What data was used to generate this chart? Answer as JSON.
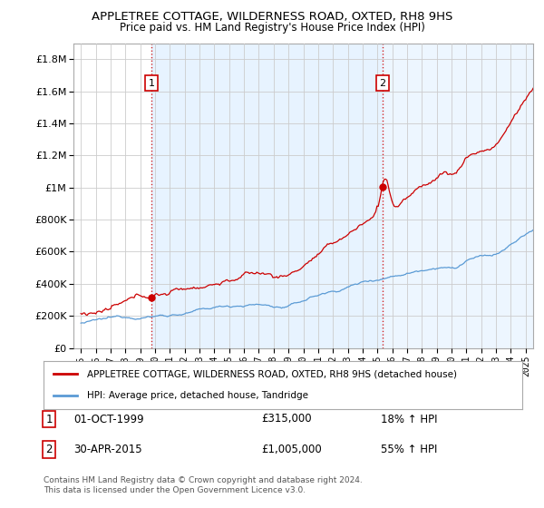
{
  "title": "APPLETREE COTTAGE, WILDERNESS ROAD, OXTED, RH8 9HS",
  "subtitle": "Price paid vs. HM Land Registry's House Price Index (HPI)",
  "legend_line1": "APPLETREE COTTAGE, WILDERNESS ROAD, OXTED, RH8 9HS (detached house)",
  "legend_line2": "HPI: Average price, detached house, Tandridge",
  "table_row1": [
    "1",
    "01-OCT-1999",
    "£315,000",
    "18% ↑ HPI"
  ],
  "table_row2": [
    "2",
    "30-APR-2015",
    "£1,005,000",
    "55% ↑ HPI"
  ],
  "footnote": "Contains HM Land Registry data © Crown copyright and database right 2024.\nThis data is licensed under the Open Government Licence v3.0.",
  "hpi_color": "#5b9bd5",
  "price_color": "#cc0000",
  "shade_color": "#ddeeff",
  "marker1_year": 1999.75,
  "marker1_value": 315000,
  "marker2_year": 2015.33,
  "marker2_value": 1005000,
  "vline1_year": 1999.75,
  "vline2_year": 2015.33,
  "ylim": [
    0,
    1900000
  ],
  "xlim_start": 1994.5,
  "xlim_end": 2025.5,
  "background_color": "#ffffff",
  "grid_color": "#cccccc",
  "title_fontsize": 9.5,
  "subtitle_fontsize": 8.5
}
